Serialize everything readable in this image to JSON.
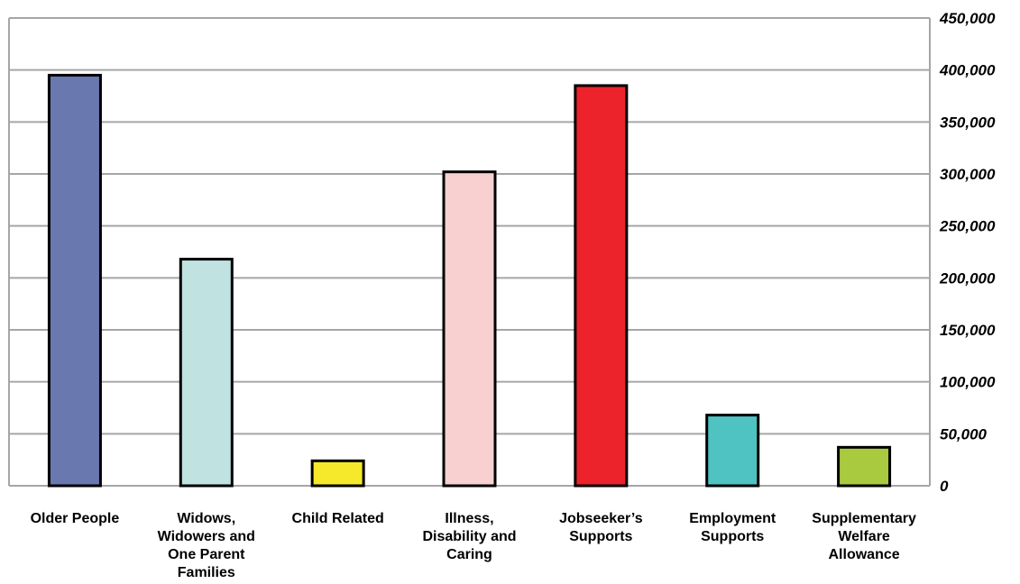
{
  "chart_data": {
    "type": "bar",
    "title": "",
    "xlabel": "",
    "ylabel": "",
    "ylim": [
      0,
      450000
    ],
    "y_tick_step": 50000,
    "y_axis_side": "right",
    "y_tick_labels": [
      "0",
      "50,000",
      "100,000",
      "150,000",
      "200,000",
      "250,000",
      "300,000",
      "350,000",
      "400,000",
      "450,000"
    ],
    "grid": true,
    "legend": "none",
    "categories": [
      "Older People",
      "Widows, Widowers and One Parent Families",
      "Child Related",
      "Illness, Disability and Caring",
      "Jobseeker’s Supports",
      "Employment Supports",
      "Supplementary Welfare Allowance"
    ],
    "category_label_lines": [
      [
        "Older People"
      ],
      [
        "Widows,",
        "Widowers and",
        "One Parent",
        "Families"
      ],
      [
        "Child Related"
      ],
      [
        "Illness,",
        "Disability and",
        "Caring"
      ],
      [
        "Jobseeker’s",
        "Supports"
      ],
      [
        "Employment",
        "Supports"
      ],
      [
        "Supplementary",
        "Welfare",
        "Allowance"
      ]
    ],
    "values": [
      395000,
      218000,
      24000,
      302000,
      385000,
      68000,
      37000
    ],
    "colors": [
      "#6a78b0",
      "#c0e2e0",
      "#f6e82a",
      "#f7d0cf",
      "#ed232b",
      "#4fc3c1",
      "#a9c93f"
    ],
    "bar_outline_color": "#000000",
    "grid_color": "#a6a6a6"
  }
}
